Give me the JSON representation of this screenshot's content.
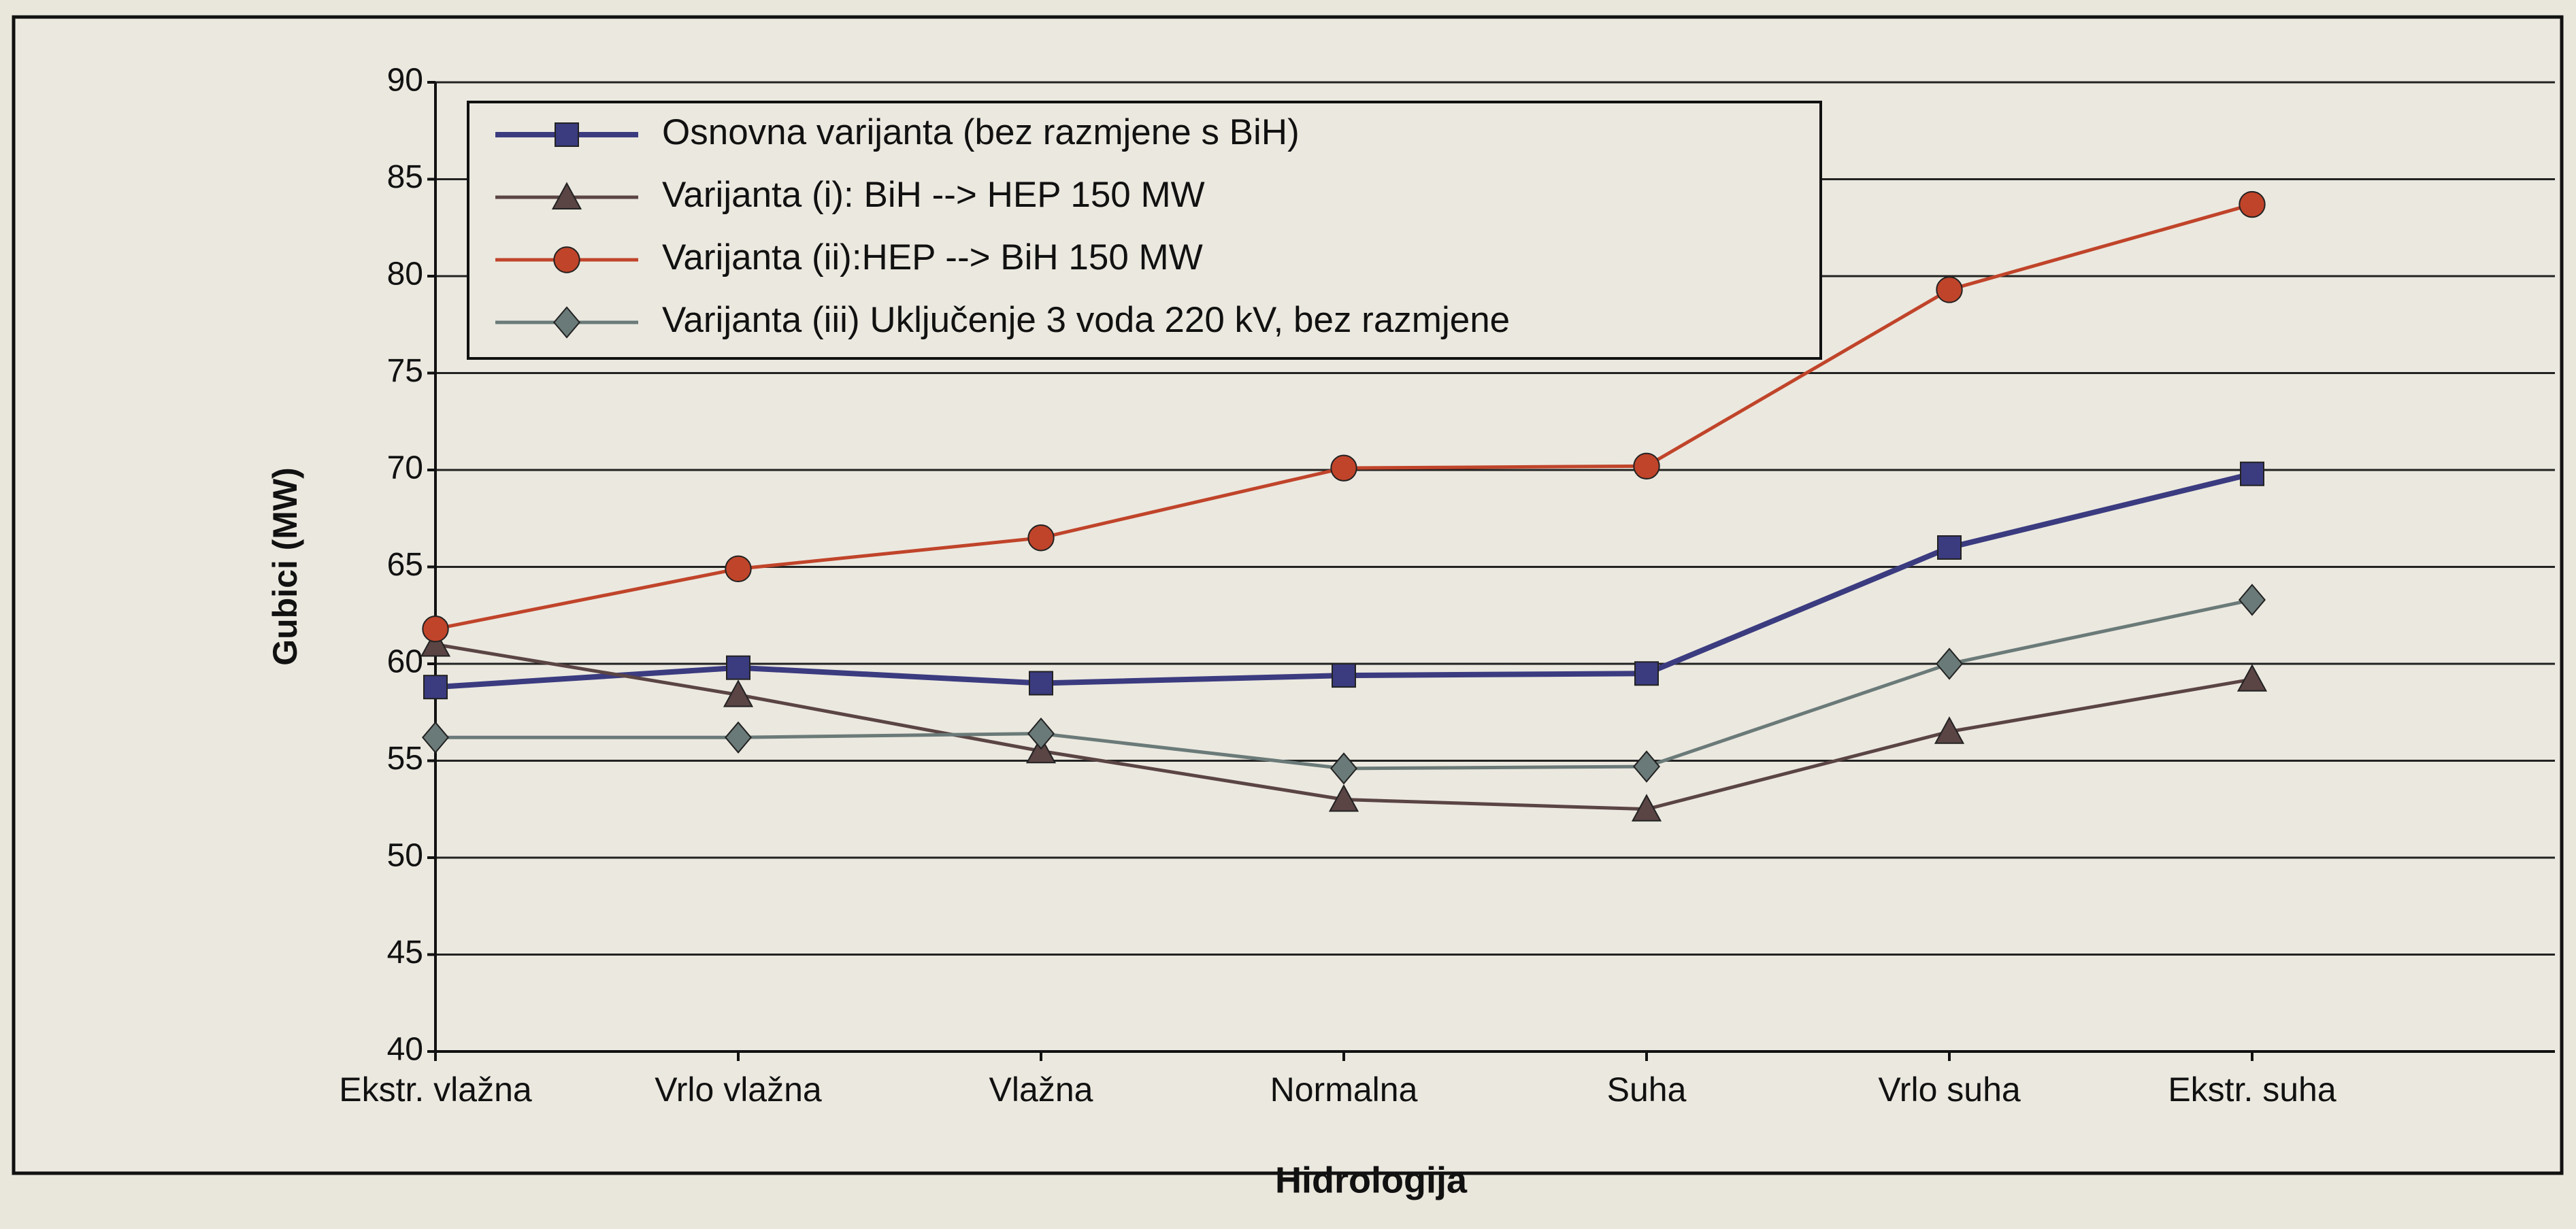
{
  "chart_data": {
    "type": "line",
    "xlabel": "Hidrologija",
    "ylabel": "Gubici (MW)",
    "categories": [
      "Ekstr. vlažna",
      "Vrlo vlažna",
      "Vlažna",
      "Normalna",
      "Suha",
      "Vrlo suha",
      "Ekstr. suha"
    ],
    "series": [
      {
        "name": "Osnovna varijanta (bez razmjene s BiH)",
        "color": "#3b3b80",
        "marker": "square",
        "values": [
          58.8,
          59.8,
          59.0,
          59.4,
          59.5,
          66.0,
          69.8
        ]
      },
      {
        "name": "Varijanta (i): BiH --> HEP 150 MW",
        "color": "#5a4444",
        "marker": "triangle",
        "values": [
          61.0,
          58.4,
          55.5,
          53.0,
          52.5,
          56.5,
          59.2
        ]
      },
      {
        "name": "Varijanta (ii):HEP --> BiH 150 MW",
        "color": "#c0442a",
        "marker": "circle",
        "values": [
          61.8,
          64.9,
          66.5,
          70.1,
          70.2,
          79.3,
          83.7
        ]
      },
      {
        "name": "Varijanta (iii) Uključenje 3 voda 220 kV, bez razmjene",
        "color": "#6a7a78",
        "marker": "diamond",
        "values": [
          56.2,
          56.2,
          56.4,
          54.6,
          54.7,
          60.0,
          63.3
        ]
      }
    ],
    "ylim": [
      40,
      90
    ],
    "yticks": [
      40,
      45,
      50,
      55,
      60,
      65,
      70,
      75,
      80,
      85,
      90
    ],
    "grid": true,
    "legend": "upper left"
  }
}
